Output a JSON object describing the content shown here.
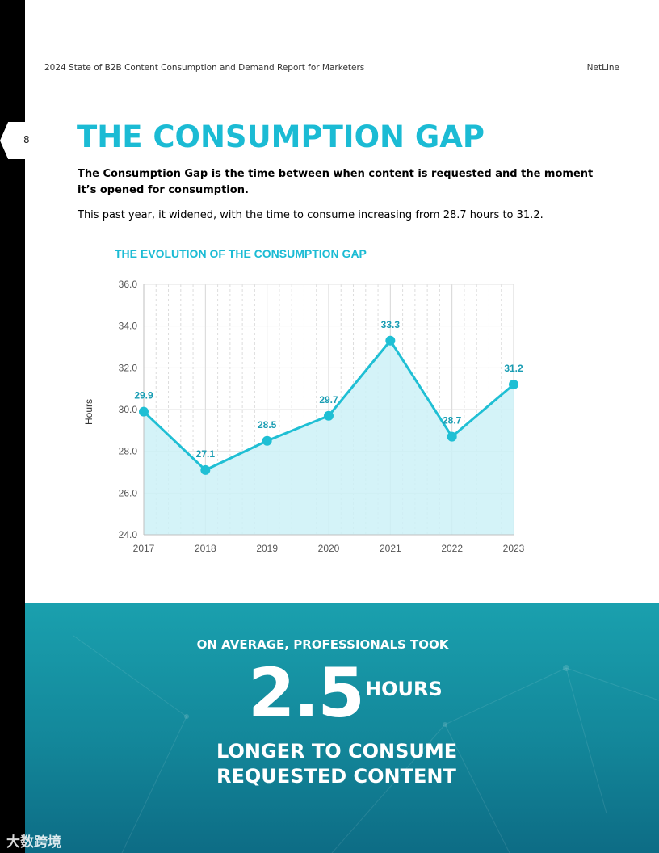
{
  "header": {
    "report_title": "2024 State of B2B Content Consumption and Demand Report for Marketers",
    "brand": "NetLine",
    "page_number": "8"
  },
  "section": {
    "title": "THE CONSUMPTION GAP",
    "intro": "The Consumption Gap is the time between when content is requested and the moment it’s opened for consumption.",
    "body": "This past year, it widened, with the time to consume increasing from 28.7 hours to 31.2."
  },
  "chart_data": {
    "type": "area",
    "title": "THE EVOLUTION OF THE CONSUMPTION GAP",
    "ylabel": "Hours",
    "xlabel": "",
    "categories": [
      "2017",
      "2018",
      "2019",
      "2020",
      "2021",
      "2022",
      "2023"
    ],
    "values": [
      29.9,
      27.1,
      28.5,
      29.7,
      33.3,
      28.7,
      31.2
    ],
    "value_labels": [
      "29.9",
      "27.1",
      "28.5",
      "29.7",
      "33.3",
      "28.7",
      "31.2"
    ],
    "ylim": [
      24.0,
      36.0
    ],
    "yticks": [
      "24.0",
      "26.0",
      "28.0",
      "30.0",
      "32.0",
      "34.0",
      "36.0"
    ],
    "grid": true,
    "line_color": "#1fbfd4",
    "fill_color": "#cdf1f7"
  },
  "banner": {
    "line1": "ON AVERAGE, PROFESSIONALS TOOK",
    "big_value": "2.5",
    "unit": "HOURS",
    "line3a": "LONGER TO CONSUME",
    "line3b": "REQUESTED CONTENT"
  },
  "watermark": "大数跨境"
}
